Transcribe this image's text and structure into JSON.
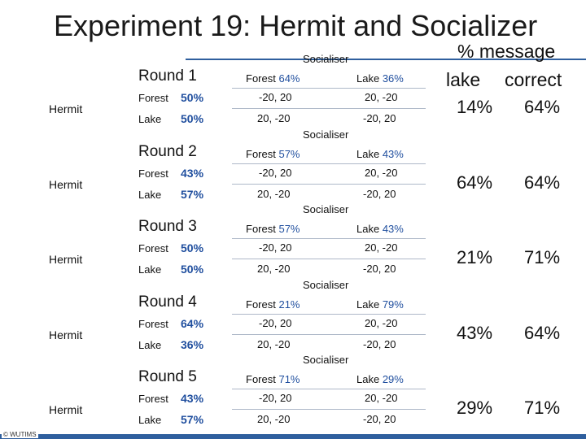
{
  "title": "Experiment 19: Hermit and Socializer",
  "header": {
    "line1": "% message",
    "lake": "lake",
    "correct": "correct"
  },
  "rounds": [
    {
      "hermit": "Hermit",
      "round": "Round 1",
      "hermit_forest_label": "Forest",
      "hermit_forest_pct": "50%",
      "hermit_lake_label": "Lake",
      "hermit_lake_pct": "50%",
      "socialiser": "Socialiser",
      "soc_forest_label": "Forest",
      "soc_forest_pct": "64%",
      "soc_lake_label": "Lake",
      "soc_lake_pct": "36%",
      "pay_11": "-20, 20",
      "pay_12": "20, -20",
      "pay_21": "20, -20",
      "pay_22": "-20, 20",
      "msg_lake": "14%",
      "msg_correct": "64%"
    },
    {
      "hermit": "Hermit",
      "round": "Round 2",
      "hermit_forest_label": "Forest",
      "hermit_forest_pct": "43%",
      "hermit_lake_label": "Lake",
      "hermit_lake_pct": "57%",
      "socialiser": "Socialiser",
      "soc_forest_label": "Forest",
      "soc_forest_pct": "57%",
      "soc_lake_label": "Lake",
      "soc_lake_pct": "43%",
      "pay_11": "-20, 20",
      "pay_12": "20, -20",
      "pay_21": "20, -20",
      "pay_22": "-20, 20",
      "msg_lake": "64%",
      "msg_correct": "64%"
    },
    {
      "hermit": "Hermit",
      "round": "Round 3",
      "hermit_forest_label": "Forest",
      "hermit_forest_pct": "50%",
      "hermit_lake_label": "Lake",
      "hermit_lake_pct": "50%",
      "socialiser": "Socialiser",
      "soc_forest_label": "Forest",
      "soc_forest_pct": "57%",
      "soc_lake_label": "Lake",
      "soc_lake_pct": "43%",
      "pay_11": "-20, 20",
      "pay_12": "20, -20",
      "pay_21": "20, -20",
      "pay_22": "-20, 20",
      "msg_lake": "21%",
      "msg_correct": "71%"
    },
    {
      "hermit": "Hermit",
      "round": "Round 4",
      "hermit_forest_label": "Forest",
      "hermit_forest_pct": "64%",
      "hermit_lake_label": "Lake",
      "hermit_lake_pct": "36%",
      "socialiser": "Socialiser",
      "soc_forest_label": "Forest",
      "soc_forest_pct": "21%",
      "soc_lake_label": "Lake",
      "soc_lake_pct": "79%",
      "pay_11": "-20, 20",
      "pay_12": "20, -20",
      "pay_21": "20, -20",
      "pay_22": "-20, 20",
      "msg_lake": "43%",
      "msg_correct": "64%"
    },
    {
      "hermit": "Hermit",
      "round": "Round 5",
      "hermit_forest_label": "Forest",
      "hermit_forest_pct": "43%",
      "hermit_lake_label": "Lake",
      "hermit_lake_pct": "57%",
      "socialiser": "Socialiser",
      "soc_forest_label": "Forest",
      "soc_forest_pct": "71%",
      "soc_lake_label": "Lake",
      "soc_lake_pct": "29%",
      "pay_11": "-20, 20",
      "pay_12": "20, -20",
      "pay_21": "20, -20",
      "pay_22": "-20, 20",
      "msg_lake": "29%",
      "msg_correct": "71%"
    }
  ],
  "copyright": "© WUTIMS",
  "colors": {
    "accent": "#2f5f9e",
    "percent": "#1f4e9e",
    "rule": "#aeb8c8"
  }
}
